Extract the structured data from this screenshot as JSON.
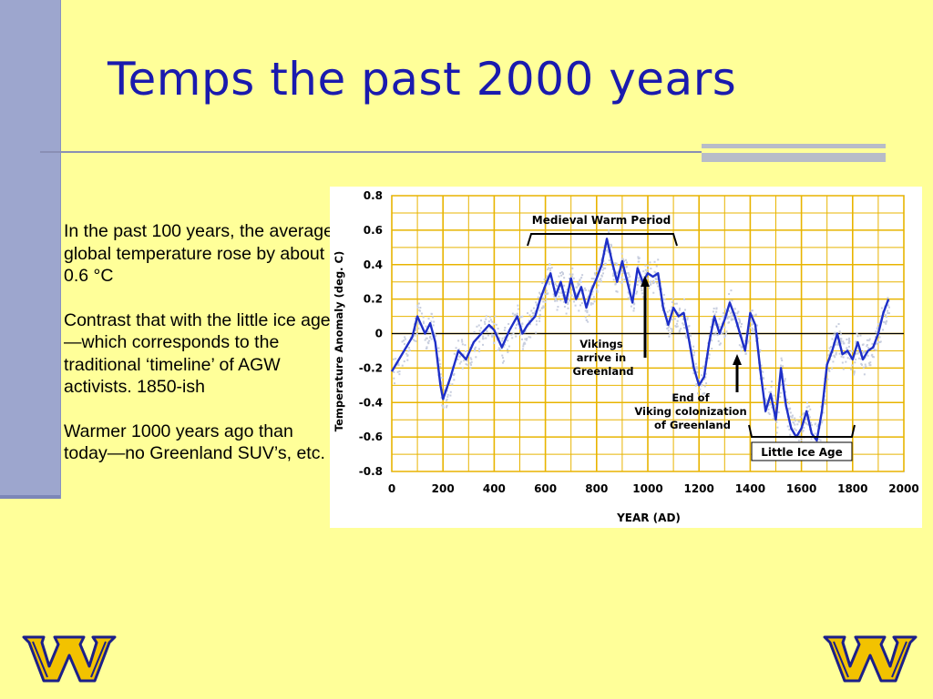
{
  "slide": {
    "title": "Temps the past 2000 years",
    "paragraphs": [
      "In the past 100 years, the average global temperature rose by about 0.6 °C",
      "Contrast that with the little ice age—which corresponds to the traditional ‘timeline’ of AGW activists. 1850-ish",
      "Warmer 1000 years ago than today—no Greenland SUV’s, etc."
    ],
    "colors": {
      "background": "#FFFF99",
      "title": "#1A1AAE",
      "side_band": "#9DA6CE",
      "logo_blue": "#1B1F8A",
      "logo_gold": "#F2C200"
    },
    "logos": {
      "left": "w-logo",
      "right": "w-logo"
    }
  },
  "chart_data": {
    "type": "line",
    "xlabel": "YEAR (AD)",
    "ylabel": "Temperature Anomaly (deg. C)",
    "xlim": [
      0,
      2000
    ],
    "ylim": [
      -0.8,
      0.8
    ],
    "x_ticks": [
      "0",
      "200",
      "400",
      "600",
      "800",
      "1000",
      "1200",
      "1400",
      "1600",
      "1800",
      "2000"
    ],
    "y_ticks": [
      "0.8",
      "0.6",
      "0.4",
      "0.2",
      "0",
      "-0.2",
      "-0.4",
      "-0.6",
      "-0.8"
    ],
    "grid": true,
    "series": [
      {
        "color": "#1E2FC8",
        "x": [
          0,
          40,
          80,
          100,
          130,
          150,
          170,
          190,
          200,
          230,
          260,
          290,
          320,
          350,
          380,
          400,
          430,
          460,
          490,
          510,
          530,
          560,
          580,
          600,
          620,
          640,
          660,
          680,
          700,
          720,
          740,
          760,
          780,
          800,
          820,
          840,
          860,
          880,
          900,
          920,
          940,
          960,
          980,
          1000,
          1020,
          1040,
          1060,
          1080,
          1100,
          1120,
          1140,
          1160,
          1180,
          1200,
          1220,
          1240,
          1260,
          1280,
          1300,
          1320,
          1340,
          1360,
          1380,
          1400,
          1420,
          1440,
          1460,
          1480,
          1500,
          1520,
          1540,
          1560,
          1580,
          1600,
          1620,
          1640,
          1660,
          1680,
          1700,
          1720,
          1740,
          1760,
          1780,
          1800,
          1820,
          1840,
          1860,
          1880,
          1900,
          1920,
          1940
        ],
        "values": [
          -0.22,
          -0.12,
          -0.02,
          0.1,
          0.0,
          0.06,
          -0.05,
          -0.3,
          -0.38,
          -0.25,
          -0.1,
          -0.15,
          -0.05,
          0.0,
          0.05,
          0.02,
          -0.08,
          0.02,
          0.1,
          0.0,
          0.05,
          0.1,
          0.2,
          0.28,
          0.35,
          0.22,
          0.3,
          0.18,
          0.32,
          0.2,
          0.27,
          0.15,
          0.25,
          0.32,
          0.4,
          0.55,
          0.42,
          0.3,
          0.42,
          0.3,
          0.18,
          0.38,
          0.3,
          0.35,
          0.33,
          0.35,
          0.15,
          0.05,
          0.15,
          0.1,
          0.12,
          -0.03,
          -0.2,
          -0.3,
          -0.25,
          -0.05,
          0.1,
          0.0,
          0.08,
          0.18,
          0.1,
          0.0,
          -0.1,
          0.12,
          0.05,
          -0.22,
          -0.45,
          -0.35,
          -0.5,
          -0.2,
          -0.42,
          -0.55,
          -0.6,
          -0.55,
          -0.45,
          -0.58,
          -0.62,
          -0.45,
          -0.18,
          -0.1,
          0.0,
          -0.12,
          -0.1,
          -0.15,
          -0.05,
          -0.15,
          -0.1,
          -0.08,
          0.0,
          0.12,
          0.2
        ]
      }
    ],
    "annotations": [
      "Medieval Warm Period",
      "Vikings arrive in Greenland",
      "End of Viking colonization of Greenland",
      "Little Ice Age"
    ]
  }
}
